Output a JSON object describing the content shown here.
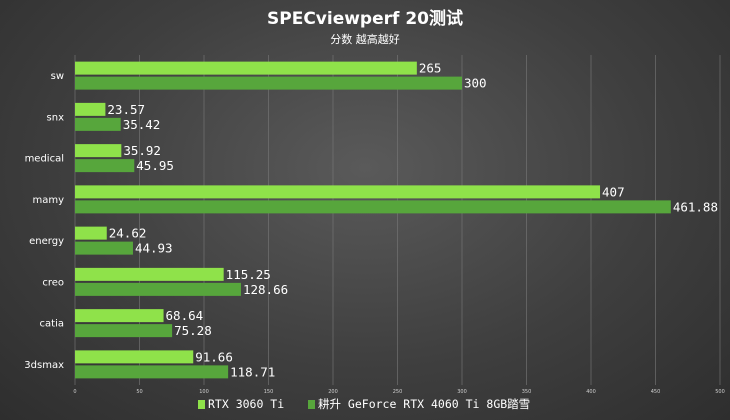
{
  "chart_data": {
    "type": "bar",
    "orientation": "horizontal",
    "title": "SPECviewperf 20测试",
    "subtitle": "分数 越高越好",
    "categories": [
      "sw",
      "snx",
      "medical",
      "mamy",
      "energy",
      "creo",
      "catia",
      "3dsmax"
    ],
    "series": [
      {
        "name": "RTX 3060 Ti",
        "color": "#8fe24a",
        "values": [
          265,
          23.57,
          35.92,
          407,
          24.62,
          115.25,
          68.64,
          91.66
        ],
        "labels": [
          "265",
          "23.57",
          "35.92",
          "407",
          "24.62",
          "115.25",
          "68.64",
          "91.66"
        ]
      },
      {
        "name": "耕升 GeForce RTX 4060 Ti 8GB踏雪",
        "color": "#57a63c",
        "values": [
          300,
          35.42,
          45.95,
          461.88,
          44.93,
          128.66,
          75.28,
          118.71
        ],
        "labels": [
          "300",
          "35.42",
          "45.95",
          "461.88",
          "44.93",
          "128.66",
          "75.28",
          "118.71"
        ]
      }
    ],
    "xlim": [
      0,
      500
    ],
    "xticks": [
      "0",
      "50",
      "100",
      "150",
      "200",
      "250",
      "300",
      "350",
      "400",
      "450",
      "500"
    ],
    "grid": true,
    "legend_position": "bottom-center"
  }
}
